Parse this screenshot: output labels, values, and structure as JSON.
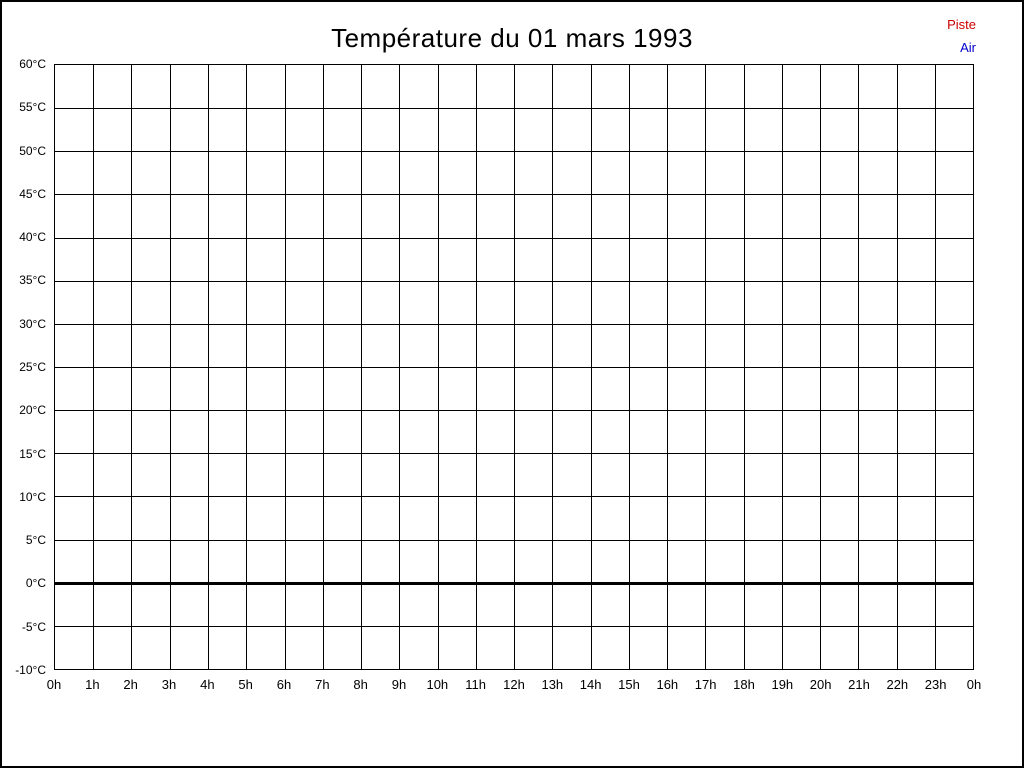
{
  "page": {
    "background": "#ffffff",
    "border_color": "#000000"
  },
  "chart_data": {
    "type": "line",
    "title": "Température du 01 mars 1993",
    "xlabel": "",
    "ylabel": "",
    "x_tick_labels": [
      "0h",
      "1h",
      "2h",
      "3h",
      "4h",
      "5h",
      "6h",
      "7h",
      "8h",
      "9h",
      "10h",
      "11h",
      "12h",
      "13h",
      "14h",
      "15h",
      "16h",
      "17h",
      "18h",
      "19h",
      "20h",
      "21h",
      "22h",
      "23h",
      "0h"
    ],
    "y_ticks": [
      60,
      55,
      50,
      45,
      40,
      35,
      30,
      25,
      20,
      15,
      10,
      5,
      0,
      -5,
      -10
    ],
    "y_tick_labels": [
      "60°C",
      "55°C",
      "50°C",
      "45°C",
      "40°C",
      "35°C",
      "30°C",
      "25°C",
      "20°C",
      "15°C",
      "10°C",
      "5°C",
      "0°C",
      "-5°C",
      "-10°C"
    ],
    "ylim": [
      -10,
      60
    ],
    "y_step": 5,
    "grid": true,
    "gridline_color": "#000000",
    "zero_line": {
      "value": 0,
      "color": "#000000",
      "thickness": 3
    },
    "legend": [
      {
        "label": "Piste",
        "color": "#cc0000"
      },
      {
        "label": "Air",
        "color": "#0000cc"
      }
    ],
    "legend_position": "top-right",
    "series": []
  }
}
